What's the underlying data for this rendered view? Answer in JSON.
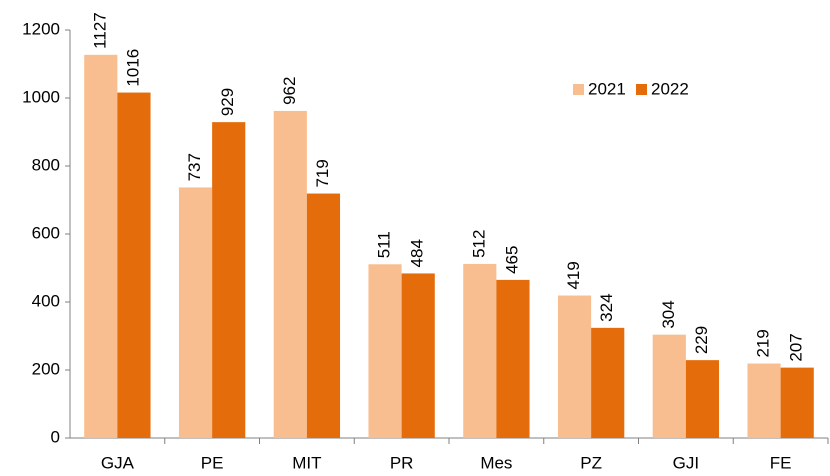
{
  "chart_data": {
    "type": "bar",
    "categories": [
      "GJA",
      "PE",
      "MIT",
      "PR",
      "Mes",
      "PZ",
      "GJI",
      "FE"
    ],
    "series": [
      {
        "name": "2021",
        "color": "#f9be8f",
        "values": [
          1127,
          737,
          962,
          511,
          512,
          419,
          304,
          219
        ]
      },
      {
        "name": "2022",
        "color": "#e46c0a",
        "values": [
          1016,
          929,
          719,
          484,
          465,
          324,
          229,
          207
        ]
      }
    ],
    "ylim": [
      0,
      1200
    ],
    "yticks": [
      0,
      200,
      400,
      600,
      800,
      1000,
      1200
    ],
    "grid": false,
    "legend": "upper right",
    "data_labels": true
  }
}
